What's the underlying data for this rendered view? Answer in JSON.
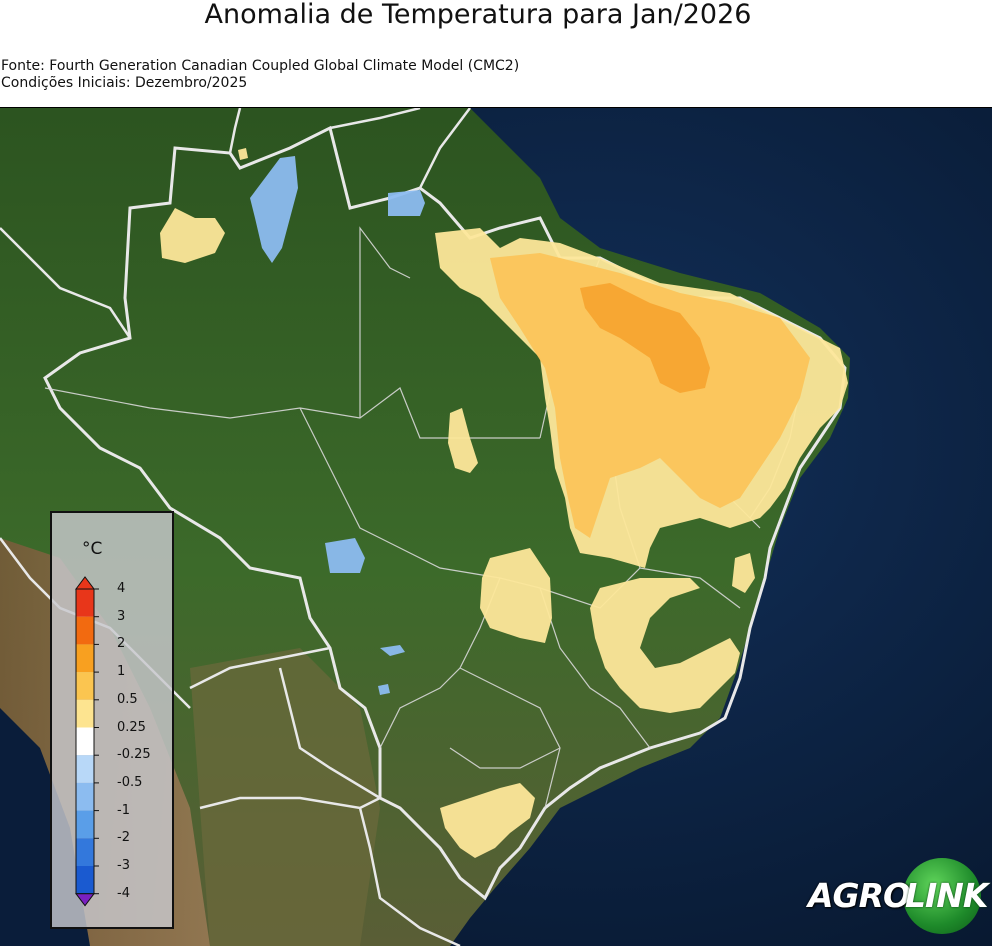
{
  "title": "Anomalia de Temperatura para Jan/2026",
  "source_line": "Fonte: Fourth Generation Canadian Coupled Global Climate Model (CMC2)",
  "initial_conditions_line": "Condições Iniciais: Dezembro/2025",
  "legend": {
    "unit": "°C",
    "ticks": [
      "4",
      "3",
      "2",
      "1",
      "0.5",
      "0.25",
      "-0.25",
      "-0.5",
      "-1",
      "-2",
      "-3",
      "-4"
    ],
    "colors": [
      "#e8361a",
      "#f26a10",
      "#f8a020",
      "#fbc550",
      "#fde490",
      "#ffffff",
      "#b8d8f8",
      "#8cbcf0",
      "#5a9ee8",
      "#3378dc",
      "#1a5ad0",
      "#7a20c0"
    ]
  },
  "logo": {
    "part1": "AGRO",
    "part2": "LINK"
  },
  "colors": {
    "ocean": "#0b1f3c",
    "land_forest": "#2f5a22",
    "land_dry": "#6a6a3a",
    "anomaly_light": "#fde79a",
    "anomaly_mid": "#fbc45a",
    "anomaly_strong": "#f7a530",
    "anomaly_cool": "#8cbcf0"
  }
}
